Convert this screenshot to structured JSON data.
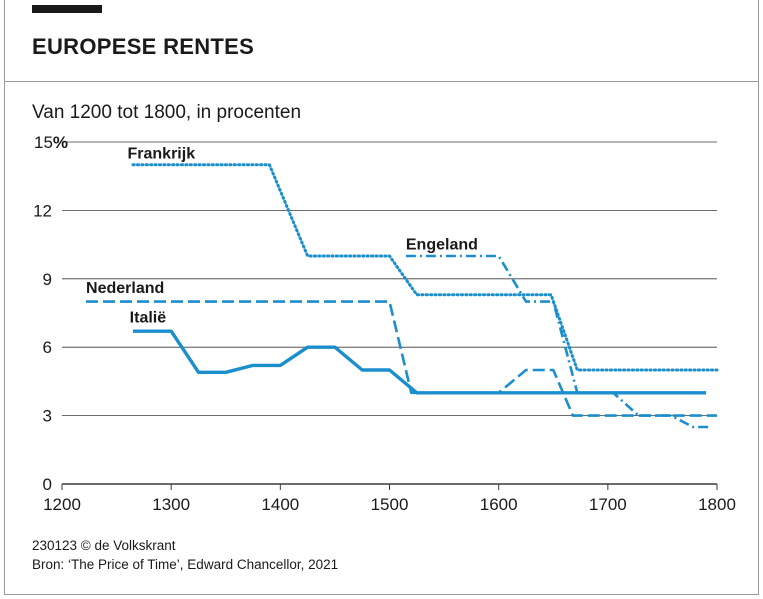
{
  "header": {
    "title": "EUROPESE RENTES",
    "subtitle": "Van 1200 tot 1800, in procenten"
  },
  "footer": {
    "credit": "230123 © de Volkskrant",
    "source": "Bron: ‘The Price of Time’, Edward Chancellor, 2021"
  },
  "colors": {
    "series": "#1b8fce",
    "grid": "#3a3a3a",
    "text": "#1a1a1a"
  },
  "chart_data": {
    "type": "line",
    "title": "EUROPESE RENTES",
    "subtitle": "Van 1200 tot 1800, in procenten",
    "xlabel": "",
    "ylabel": "",
    "xlim": [
      1200,
      1800
    ],
    "ylim": [
      0,
      15
    ],
    "x_ticks": [
      "1200",
      "1300",
      "1400",
      "1500",
      "1600",
      "1700",
      "1800"
    ],
    "y_ticks": [
      "0",
      "3",
      "6",
      "9",
      "12",
      "15"
    ],
    "y_unit": "%",
    "grid": true,
    "series": [
      {
        "name": "Frankrijk",
        "style": "dotted",
        "label_pos": [
          1260,
          14.1
        ],
        "points": [
          [
            1265,
            14
          ],
          [
            1390,
            14
          ],
          [
            1425,
            10
          ],
          [
            1500,
            10
          ],
          [
            1525,
            8.3
          ],
          [
            1648,
            8.3
          ],
          [
            1672,
            5
          ],
          [
            1800,
            5
          ]
        ]
      },
      {
        "name": "Engeland",
        "style": "dashdot",
        "label_pos": [
          1515,
          10.1
        ],
        "points": [
          [
            1515,
            10
          ],
          [
            1600,
            10
          ],
          [
            1625,
            8
          ],
          [
            1650,
            8
          ],
          [
            1672,
            4
          ],
          [
            1705,
            4
          ],
          [
            1728,
            3
          ],
          [
            1758,
            3
          ],
          [
            1778,
            2.5
          ],
          [
            1792,
            2.5
          ]
        ]
      },
      {
        "name": "Nederland",
        "style": "dashed",
        "label_pos": [
          1222,
          8.2
        ],
        "points": [
          [
            1222,
            8
          ],
          [
            1500,
            8
          ],
          [
            1520,
            4
          ],
          [
            1600,
            4
          ],
          [
            1625,
            5
          ],
          [
            1650,
            5
          ],
          [
            1668,
            3
          ],
          [
            1800,
            3
          ]
        ]
      },
      {
        "name": "Italië",
        "style": "solid",
        "label_pos": [
          1262,
          6.9
        ],
        "points": [
          [
            1265,
            6.7
          ],
          [
            1300,
            6.7
          ],
          [
            1325,
            4.9
          ],
          [
            1350,
            4.9
          ],
          [
            1375,
            5.2
          ],
          [
            1400,
            5.2
          ],
          [
            1425,
            6
          ],
          [
            1450,
            6
          ],
          [
            1475,
            5
          ],
          [
            1500,
            5
          ],
          [
            1525,
            4
          ],
          [
            1790,
            4
          ]
        ]
      }
    ]
  }
}
